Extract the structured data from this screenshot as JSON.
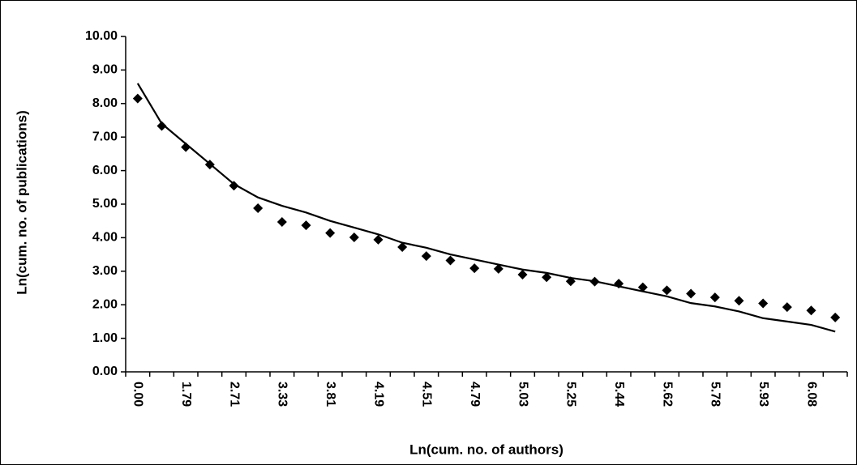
{
  "chart_data": {
    "type": "line",
    "x_label": "Ln(cum. no. of authors)",
    "y_label": "Ln(cum. no. of publications)",
    "categories": [
      "0.00",
      null,
      "1.79",
      null,
      "2.71",
      null,
      "3.33",
      null,
      "3.81",
      null,
      "4.19",
      null,
      "4.51",
      null,
      "4.79",
      null,
      "5.03",
      null,
      "5.25",
      null,
      "5.44",
      null,
      "5.62",
      null,
      "5.78",
      null,
      "5.93",
      null,
      "6.08",
      null
    ],
    "series": [
      {
        "style": "markers",
        "color": "#000000",
        "values": [
          8.15,
          7.33,
          6.7,
          6.18,
          5.55,
          4.88,
          4.47,
          4.37,
          4.14,
          4.01,
          3.94,
          3.72,
          3.45,
          3.32,
          3.09,
          3.07,
          2.9,
          2.82,
          2.7,
          2.69,
          2.63,
          2.52,
          2.43,
          2.33,
          2.22,
          2.12,
          2.04,
          1.93,
          1.83,
          1.62
        ]
      },
      {
        "style": "line",
        "color": "#000000",
        "values": [
          8.6,
          7.4,
          6.8,
          6.2,
          5.6,
          5.2,
          4.95,
          4.75,
          4.5,
          4.3,
          4.1,
          3.85,
          3.7,
          3.5,
          3.35,
          3.2,
          3.05,
          2.95,
          2.8,
          2.7,
          2.55,
          2.4,
          2.25,
          2.05,
          1.95,
          1.8,
          1.6,
          1.5,
          1.4,
          1.2
        ]
      }
    ],
    "ylim": [
      0,
      10
    ],
    "yticks": [
      {
        "value": 0,
        "label": "0.00"
      },
      {
        "value": 1,
        "label": "1.00"
      },
      {
        "value": 2,
        "label": "2.00"
      },
      {
        "value": 3,
        "label": "3.00"
      },
      {
        "value": 4,
        "label": "4.00"
      },
      {
        "value": 5,
        "label": "5.00"
      },
      {
        "value": 6,
        "label": "6.00"
      },
      {
        "value": 7,
        "label": "7.00"
      },
      {
        "value": 8,
        "label": "8.00"
      },
      {
        "value": 9,
        "label": "9.00"
      },
      {
        "value": 10,
        "label": "10.00"
      }
    ]
  }
}
